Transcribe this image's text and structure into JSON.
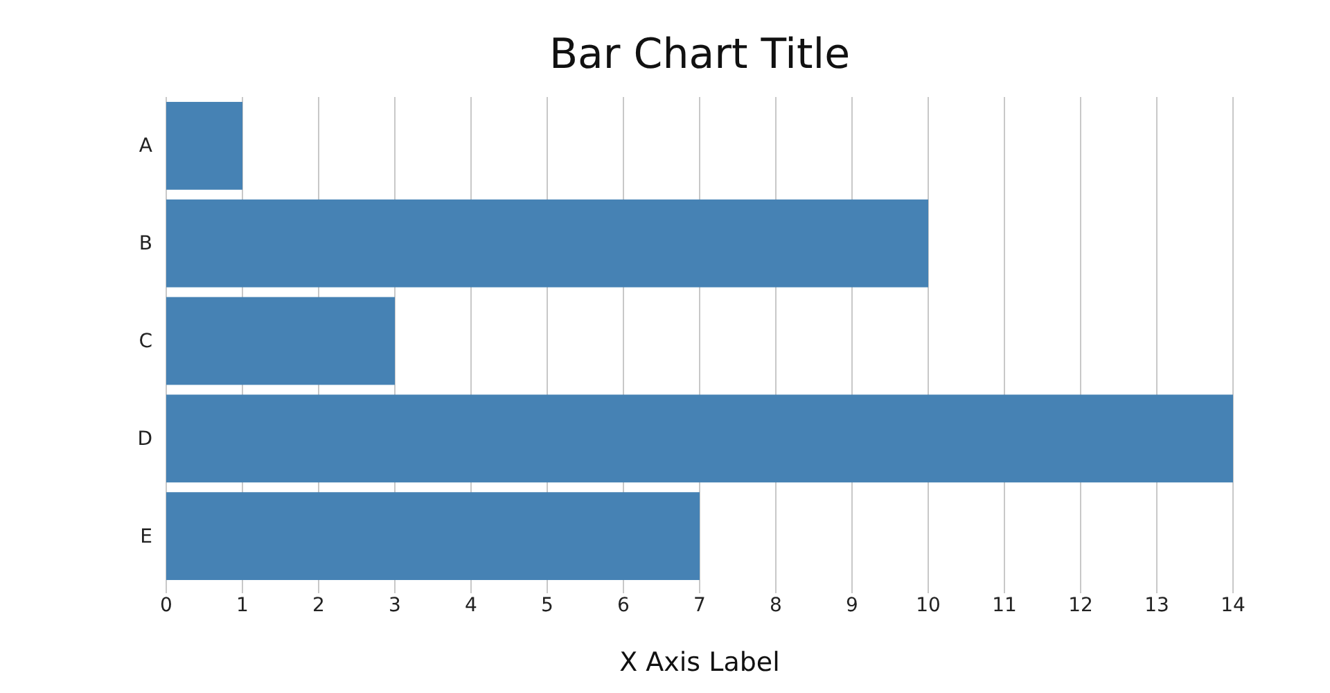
{
  "chart_data": {
    "type": "bar",
    "orientation": "horizontal",
    "title": "Bar Chart Title",
    "xlabel": "X Axis Label",
    "categories": [
      "A",
      "B",
      "C",
      "D",
      "E"
    ],
    "values": [
      1,
      10,
      3,
      14,
      7
    ],
    "color": "#4682b4",
    "xlim": [
      0,
      14
    ],
    "xticks": [
      0,
      1,
      2,
      3,
      4,
      5,
      6,
      7,
      8,
      9,
      10,
      11,
      12,
      13,
      14
    ],
    "grid": "x"
  }
}
